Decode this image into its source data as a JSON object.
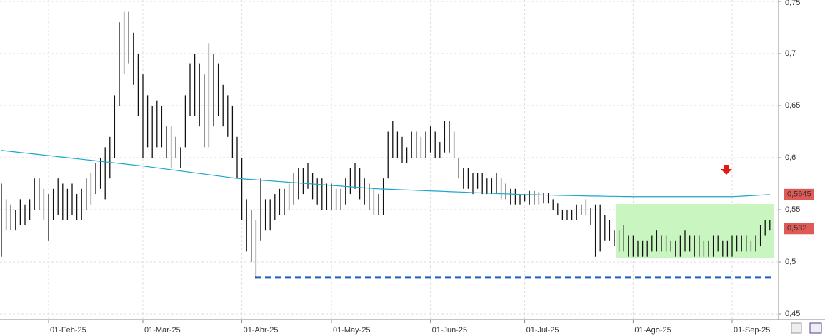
{
  "chart_data": {
    "type": "ohlc",
    "categories": [
      null,
      null,
      null,
      null,
      null,
      null,
      null,
      null,
      null,
      null,
      "01-Feb-25",
      null,
      null,
      null,
      null,
      null,
      null,
      null,
      null,
      null,
      null,
      null,
      null,
      null,
      null,
      null,
      null,
      null,
      null,
      null,
      "01-Mar-25",
      null,
      null,
      null,
      null,
      null,
      null,
      null,
      null,
      null,
      null,
      null,
      null,
      null,
      null,
      null,
      null,
      null,
      null,
      null,
      null,
      "01-Abr-25",
      null,
      null,
      null,
      null,
      null,
      null,
      null,
      null,
      null,
      null,
      null,
      null,
      null,
      null,
      null,
      null,
      null,
      null,
      "01-May-25",
      null,
      null,
      null,
      null,
      null,
      null,
      null,
      null,
      null,
      null,
      null,
      null,
      null,
      null,
      null,
      null,
      null,
      null,
      null,
      null,
      "01-Jun-25",
      null,
      null,
      null,
      null,
      null,
      null,
      null,
      null,
      null,
      null,
      null,
      null,
      null,
      null,
      null,
      null,
      null,
      null,
      null,
      "01-Jul-25",
      null,
      null,
      null,
      null,
      null,
      null,
      null,
      null,
      null,
      null,
      null,
      null,
      null,
      null,
      null,
      null,
      null,
      null,
      null,
      null,
      null,
      null,
      "01-Ago-25",
      null,
      null,
      null,
      null,
      null,
      null,
      null,
      null,
      null,
      null,
      null,
      null,
      null,
      null,
      null,
      null,
      null,
      null,
      null,
      null,
      "01-Sep-25",
      null,
      null,
      null,
      null,
      null,
      null,
      null,
      null
    ],
    "high": [
      0.575,
      0.56,
      0.555,
      0.55,
      0.56,
      0.555,
      0.56,
      0.58,
      0.58,
      0.57,
      0.565,
      0.57,
      0.58,
      0.575,
      0.57,
      0.575,
      0.565,
      0.57,
      0.58,
      0.585,
      0.595,
      0.6,
      0.61,
      0.62,
      0.66,
      0.73,
      0.74,
      0.74,
      0.72,
      0.7,
      0.68,
      0.66,
      0.65,
      0.655,
      0.65,
      0.63,
      0.63,
      0.62,
      0.61,
      0.66,
      0.69,
      0.7,
      0.69,
      0.68,
      0.71,
      0.7,
      0.69,
      0.67,
      0.66,
      0.65,
      0.62,
      0.6,
      0.56,
      0.55,
      0.54,
      0.58,
      0.56,
      0.56,
      0.565,
      0.57,
      0.57,
      0.575,
      0.585,
      0.59,
      0.59,
      0.595,
      0.585,
      0.58,
      0.58,
      0.575,
      0.575,
      0.57,
      0.57,
      0.58,
      0.59,
      0.595,
      0.59,
      0.58,
      0.575,
      0.57,
      0.565,
      0.58,
      0.625,
      0.635,
      0.625,
      0.62,
      0.61,
      0.625,
      0.625,
      0.62,
      0.625,
      0.63,
      0.625,
      0.615,
      0.635,
      0.635,
      0.625,
      0.6,
      0.59,
      0.59,
      0.585,
      0.585,
      0.585,
      0.58,
      0.58,
      0.585,
      0.58,
      0.575,
      0.57,
      0.57,
      0.565,
      0.565,
      0.568,
      0.568,
      0.567,
      0.566,
      0.566,
      0.56,
      0.556,
      0.55,
      0.55,
      0.55,
      0.555,
      0.555,
      0.56,
      0.552,
      0.555,
      0.555,
      0.545,
      0.54,
      0.53,
      0.53,
      0.535,
      0.525,
      0.525,
      0.52,
      0.52,
      0.52,
      0.525,
      0.53,
      0.525,
      0.525,
      0.52,
      0.52,
      0.525,
      0.53,
      0.525,
      0.525,
      0.525,
      0.52,
      0.52,
      0.525,
      0.525,
      0.52,
      0.52,
      0.525,
      0.525,
      0.525,
      0.525,
      0.52,
      0.525,
      0.535,
      0.54,
      0.54
    ],
    "low": [
      0.505,
      0.53,
      0.53,
      0.53,
      0.535,
      0.535,
      0.54,
      0.55,
      0.55,
      0.54,
      0.52,
      0.54,
      0.545,
      0.54,
      0.54,
      0.545,
      0.54,
      0.54,
      0.55,
      0.555,
      0.565,
      0.57,
      0.56,
      0.58,
      0.6,
      0.65,
      0.68,
      0.69,
      0.67,
      0.64,
      0.6,
      0.61,
      0.6,
      0.61,
      0.61,
      0.6,
      0.59,
      0.6,
      0.59,
      0.61,
      0.64,
      0.64,
      0.63,
      0.61,
      0.61,
      0.63,
      0.64,
      0.63,
      0.62,
      0.6,
      0.58,
      0.54,
      0.51,
      0.5,
      0.485,
      0.52,
      0.53,
      0.53,
      0.54,
      0.545,
      0.545,
      0.55,
      0.555,
      0.56,
      0.565,
      0.57,
      0.56,
      0.555,
      0.55,
      0.55,
      0.55,
      0.55,
      0.55,
      0.555,
      0.565,
      0.57,
      0.56,
      0.555,
      0.55,
      0.545,
      0.545,
      0.545,
      0.58,
      0.6,
      0.6,
      0.595,
      0.595,
      0.6,
      0.6,
      0.6,
      0.6,
      0.605,
      0.6,
      0.6,
      0.605,
      0.605,
      0.6,
      0.58,
      0.57,
      0.57,
      0.565,
      0.57,
      0.565,
      0.565,
      0.565,
      0.565,
      0.56,
      0.56,
      0.555,
      0.555,
      0.555,
      0.558,
      0.555,
      0.555,
      0.555,
      0.556,
      0.556,
      0.55,
      0.545,
      0.54,
      0.54,
      0.54,
      0.54,
      0.545,
      0.545,
      0.535,
      0.505,
      0.51,
      0.52,
      0.52,
      0.515,
      0.51,
      0.51,
      0.505,
      0.505,
      0.505,
      0.505,
      0.505,
      0.51,
      0.51,
      0.51,
      0.51,
      0.51,
      0.505,
      0.505,
      0.51,
      0.51,
      0.505,
      0.505,
      0.505,
      0.505,
      0.505,
      0.51,
      0.505,
      0.505,
      0.505,
      0.51,
      0.51,
      0.51,
      0.51,
      0.51,
      0.515,
      0.525,
      0.53
    ],
    "bar_color": "#111111",
    "ma": [
      0.607,
      0.6065,
      0.606,
      0.6055,
      0.605,
      0.6045,
      0.604,
      0.6035,
      0.603,
      0.6025,
      0.602,
      0.6015,
      0.601,
      0.6005,
      0.6,
      0.5995,
      0.599,
      0.5985,
      0.598,
      0.5975,
      0.597,
      0.5965,
      0.596,
      0.5955,
      0.595,
      0.5945,
      0.594,
      0.5935,
      0.593,
      0.5925,
      0.592,
      0.5914,
      0.5908,
      0.5902,
      0.5896,
      0.589,
      0.5884,
      0.5878,
      0.5872,
      0.5866,
      0.586,
      0.5854,
      0.5848,
      0.5842,
      0.5836,
      0.583,
      0.5824,
      0.5818,
      0.5812,
      0.5806,
      0.58,
      0.5797,
      0.5793,
      0.579,
      0.5787,
      0.5783,
      0.578,
      0.5777,
      0.5773,
      0.577,
      0.5767,
      0.5763,
      0.576,
      0.5757,
      0.5753,
      0.575,
      0.5747,
      0.5743,
      0.574,
      0.5737,
      0.5733,
      0.573,
      0.5727,
      0.5723,
      0.572,
      0.5717,
      0.5713,
      0.571,
      0.5707,
      0.5703,
      0.57,
      0.5698,
      0.5697,
      0.5695,
      0.5693,
      0.5691,
      0.5689,
      0.5688,
      0.5686,
      0.5684,
      0.5682,
      0.568,
      0.5679,
      0.5677,
      0.5675,
      0.5673,
      0.5671,
      0.567,
      0.5668,
      0.5666,
      0.5664,
      0.5662,
      0.5661,
      0.5659,
      0.5657,
      0.5655,
      0.5653,
      0.5652,
      0.565,
      0.5648,
      0.5646,
      0.5645,
      0.5644,
      0.5643,
      0.5642,
      0.5641,
      0.564,
      0.5639,
      0.5638,
      0.5637,
      0.5636,
      0.5635,
      0.5634,
      0.5633,
      0.5632,
      0.5631,
      0.5631,
      0.563,
      0.5629,
      0.5628,
      0.5628,
      0.5627,
      0.5626,
      0.5626,
      0.5625,
      0.5625,
      0.5625,
      0.5625,
      0.5625,
      0.5625,
      0.5625,
      0.5625,
      0.5625,
      0.5625,
      0.5625,
      0.5625,
      0.5625,
      0.5625,
      0.5625,
      0.5625,
      0.5625,
      0.5625,
      0.5625,
      0.5625,
      0.5625,
      0.5625,
      0.5627,
      0.563,
      0.5632,
      0.5635,
      0.5637,
      0.564,
      0.5642,
      0.5645
    ],
    "ma_color": "#1ba7c9",
    "support": 0.485,
    "support_color": "#1f5fbf",
    "zone": [
      0.504,
      0.5555
    ],
    "zone_color": "#c9f5c0",
    "price_labels": [
      {
        "value": 0.5645,
        "label": "0,5645"
      },
      {
        "value": 0.532,
        "label": "0,532"
      }
    ],
    "price_label_color": "#e05a55",
    "ylim": [
      0.45,
      0.75
    ],
    "yticks": [
      {
        "value": 0.45,
        "label": "0,45"
      },
      {
        "value": 0.5,
        "label": "0,5"
      },
      {
        "value": 0.55,
        "label": "0,55"
      },
      {
        "value": 0.6,
        "label": "0,6"
      },
      {
        "value": 0.65,
        "label": "0,65"
      },
      {
        "value": 0.7,
        "label": "0,7"
      },
      {
        "value": 0.75,
        "label": "0,75"
      }
    ],
    "grid": true
  }
}
